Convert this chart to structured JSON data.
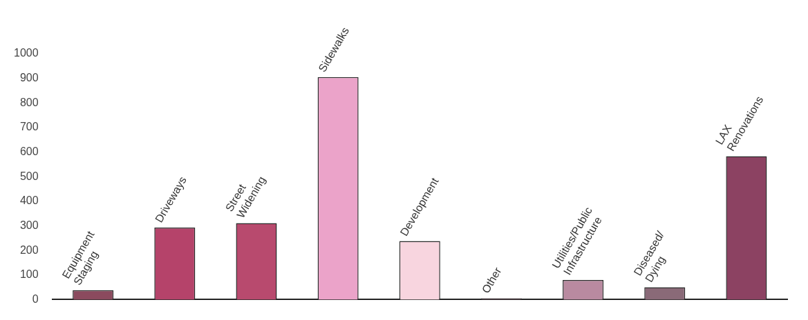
{
  "chart_data": {
    "type": "bar",
    "categories": [
      "Equipment Staging",
      "Driveways",
      "Street Widening",
      "Sidewalks",
      "Development",
      "Other",
      "Utilities/Public Infrastructure",
      "Diseased/ Dying",
      "LAX Renovations"
    ],
    "values": [
      38,
      293,
      311,
      905,
      238,
      5,
      80,
      50,
      583
    ],
    "colors": [
      "#8b4a5e",
      "#b5436a",
      "#b84a6e",
      "#eba3c9",
      "#f8d5df",
      "#6b4a55",
      "#b98aa0",
      "#8a6a78",
      "#8c4262"
    ],
    "ylim": [
      0,
      1000
    ],
    "yticks": [
      0,
      100,
      200,
      300,
      400,
      500,
      600,
      700,
      800,
      900,
      1000
    ],
    "grid": false,
    "legend": false
  }
}
